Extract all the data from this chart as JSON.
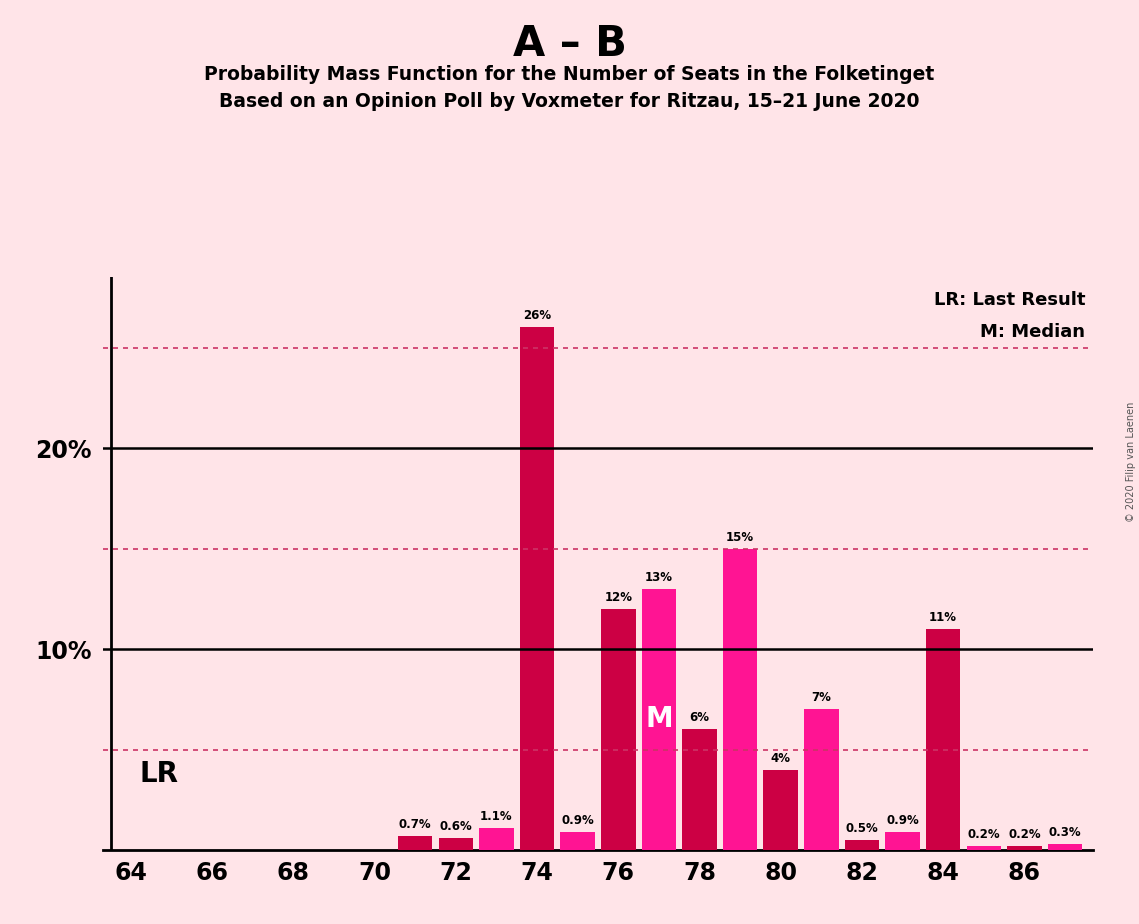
{
  "title_main": "A – B",
  "title_sub1": "Probability Mass Function for the Number of Seats in the Folketinget",
  "title_sub2": "Based on an Opinion Poll by Voxmeter for Ritzau, 15–21 June 2020",
  "copyright": "© 2020 Filip van Laenen",
  "bar_color_red": "#CC0044",
  "bar_color_magenta": "#FF1493",
  "background_color": "#FFE4E8",
  "lr_label": "LR: Last Result",
  "median_label": "M: Median",
  "dotted_line_color": "#CC3366",
  "vals_dict": {
    "64": 0,
    "65": 0,
    "66": 0,
    "67": 0,
    "68": 0,
    "69": 0,
    "70": 0,
    "71": 0.7,
    "72": 0.6,
    "73": 1.1,
    "74": 26.0,
    "75": 0.9,
    "76": 12.0,
    "77": 13.0,
    "78": 6.0,
    "79": 15.0,
    "80": 4.0,
    "81": 7.0,
    "82": 0.5,
    "83": 0.9,
    "84": 11.0,
    "85": 0.2,
    "86": 0.2,
    "87": 0.3,
    "88": 0
  },
  "color_map": {
    "71": "red",
    "72": "red",
    "73": "magenta",
    "74": "red",
    "75": "magenta",
    "76": "red",
    "77": "magenta",
    "78": "red",
    "79": "magenta",
    "80": "red",
    "81": "magenta",
    "82": "red",
    "83": "magenta",
    "84": "red",
    "85": "magenta",
    "86": "red",
    "87": "magenta"
  },
  "median_seat": 77,
  "lr_seat": 71,
  "xlim": [
    63.3,
    87.7
  ],
  "ylim": [
    0,
    28.5
  ],
  "xticks": [
    64,
    66,
    68,
    70,
    72,
    74,
    76,
    78,
    80,
    82,
    84,
    86
  ],
  "ytick_positions": [
    10,
    20
  ],
  "ytick_labels": [
    "10%",
    "20%"
  ],
  "solid_hlines": [
    10,
    20
  ],
  "dotted_hlines": [
    5,
    15,
    25
  ]
}
